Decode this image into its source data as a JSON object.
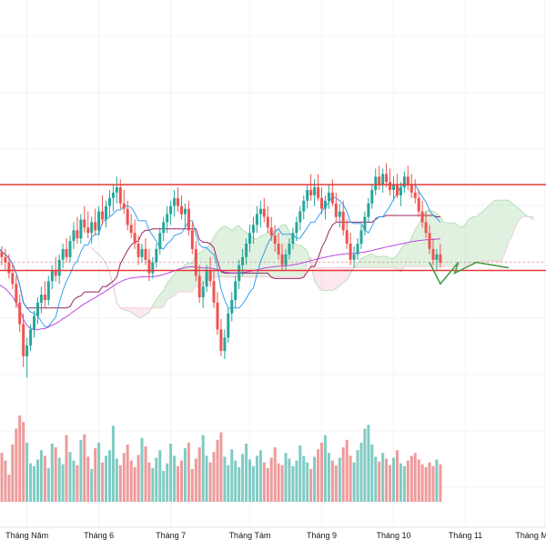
{
  "chart_data": {
    "type": "candlestick",
    "title": "",
    "xlabel": "",
    "ylabel": "",
    "x_tick_labels": [
      "Tháng Năm",
      "Tháng 6",
      "Tháng 7",
      "Tháng Tám",
      "Tháng 9",
      "Tháng 10",
      "Tháng 11",
      "Tháng Mười hai"
    ],
    "x_ticks_at_bar": [
      8,
      28,
      48,
      70,
      90,
      110,
      130,
      152
    ],
    "y_range": [
      0,
      100
    ],
    "grid": true,
    "colors": {
      "up": "#26a69a",
      "down": "#ef5350",
      "volume_up": "#80cbc4",
      "volume_down": "#ef9a9a",
      "tenkan": "#2196f3",
      "kijun": "#880e4f",
      "long_ma": "#b833e0",
      "cloud_bull": "#a5d6a7",
      "cloud_bear": "#f8bbd0",
      "range_box": "#e53935",
      "projection": "#43a047",
      "last_price_line": "#ef5350"
    },
    "range_box": {
      "upper": 82,
      "lower": 50,
      "from_bar": 0,
      "to_bar": 158
    },
    "projection_path": [
      [
        120,
        53
      ],
      [
        123,
        45
      ],
      [
        128,
        53
      ],
      [
        127,
        49
      ],
      [
        133,
        53
      ],
      [
        142,
        51
      ]
    ],
    "candles": [
      {
        "o": 59,
        "h": 62,
        "l": 55,
        "c": 57
      },
      {
        "o": 57,
        "h": 59,
        "l": 52,
        "c": 55
      },
      {
        "o": 55,
        "h": 58,
        "l": 50,
        "c": 53
      },
      {
        "o": 53,
        "h": 56,
        "l": 47,
        "c": 49
      },
      {
        "o": 49,
        "h": 52,
        "l": 43,
        "c": 45
      },
      {
        "o": 45,
        "h": 48,
        "l": 36,
        "c": 38
      },
      {
        "o": 38,
        "h": 41,
        "l": 27,
        "c": 30
      },
      {
        "o": 30,
        "h": 34,
        "l": 14,
        "c": 18
      },
      {
        "o": 18,
        "h": 25,
        "l": 10,
        "c": 22
      },
      {
        "o": 22,
        "h": 30,
        "l": 20,
        "c": 28
      },
      {
        "o": 28,
        "h": 35,
        "l": 25,
        "c": 33
      },
      {
        "o": 33,
        "h": 40,
        "l": 30,
        "c": 38
      },
      {
        "o": 38,
        "h": 44,
        "l": 34,
        "c": 41
      },
      {
        "o": 41,
        "h": 46,
        "l": 36,
        "c": 39
      },
      {
        "o": 39,
        "h": 48,
        "l": 37,
        "c": 46
      },
      {
        "o": 46,
        "h": 52,
        "l": 43,
        "c": 50
      },
      {
        "o": 50,
        "h": 55,
        "l": 46,
        "c": 48
      },
      {
        "o": 48,
        "h": 56,
        "l": 45,
        "c": 54
      },
      {
        "o": 54,
        "h": 60,
        "l": 51,
        "c": 58
      },
      {
        "o": 58,
        "h": 62,
        "l": 53,
        "c": 55
      },
      {
        "o": 55,
        "h": 63,
        "l": 53,
        "c": 61
      },
      {
        "o": 61,
        "h": 68,
        "l": 58,
        "c": 65
      },
      {
        "o": 65,
        "h": 70,
        "l": 60,
        "c": 62
      },
      {
        "o": 62,
        "h": 71,
        "l": 60,
        "c": 69
      },
      {
        "o": 69,
        "h": 74,
        "l": 64,
        "c": 66
      },
      {
        "o": 66,
        "h": 72,
        "l": 62,
        "c": 64
      },
      {
        "o": 64,
        "h": 70,
        "l": 60,
        "c": 68
      },
      {
        "o": 68,
        "h": 73,
        "l": 63,
        "c": 65
      },
      {
        "o": 65,
        "h": 74,
        "l": 63,
        "c": 72
      },
      {
        "o": 72,
        "h": 78,
        "l": 67,
        "c": 69
      },
      {
        "o": 69,
        "h": 76,
        "l": 66,
        "c": 74
      },
      {
        "o": 74,
        "h": 80,
        "l": 70,
        "c": 77
      },
      {
        "o": 77,
        "h": 82,
        "l": 72,
        "c": 79
      },
      {
        "o": 79,
        "h": 85,
        "l": 75,
        "c": 81
      },
      {
        "o": 81,
        "h": 84,
        "l": 73,
        "c": 75
      },
      {
        "o": 75,
        "h": 80,
        "l": 71,
        "c": 73
      },
      {
        "o": 73,
        "h": 76,
        "l": 65,
        "c": 67
      },
      {
        "o": 67,
        "h": 71,
        "l": 62,
        "c": 64
      },
      {
        "o": 64,
        "h": 69,
        "l": 58,
        "c": 60
      },
      {
        "o": 60,
        "h": 63,
        "l": 52,
        "c": 55
      },
      {
        "o": 55,
        "h": 60,
        "l": 53,
        "c": 58
      },
      {
        "o": 58,
        "h": 62,
        "l": 52,
        "c": 54
      },
      {
        "o": 54,
        "h": 58,
        "l": 46,
        "c": 49
      },
      {
        "o": 49,
        "h": 55,
        "l": 47,
        "c": 53
      },
      {
        "o": 53,
        "h": 60,
        "l": 51,
        "c": 58
      },
      {
        "o": 58,
        "h": 66,
        "l": 56,
        "c": 64
      },
      {
        "o": 64,
        "h": 70,
        "l": 61,
        "c": 68
      },
      {
        "o": 68,
        "h": 74,
        "l": 64,
        "c": 71
      },
      {
        "o": 71,
        "h": 76,
        "l": 67,
        "c": 74
      },
      {
        "o": 74,
        "h": 80,
        "l": 70,
        "c": 77
      },
      {
        "o": 77,
        "h": 81,
        "l": 72,
        "c": 74
      },
      {
        "o": 74,
        "h": 78,
        "l": 69,
        "c": 71
      },
      {
        "o": 71,
        "h": 75,
        "l": 66,
        "c": 73
      },
      {
        "o": 73,
        "h": 76,
        "l": 63,
        "c": 65
      },
      {
        "o": 65,
        "h": 68,
        "l": 56,
        "c": 58
      },
      {
        "o": 58,
        "h": 61,
        "l": 46,
        "c": 48
      },
      {
        "o": 48,
        "h": 52,
        "l": 38,
        "c": 40
      },
      {
        "o": 40,
        "h": 46,
        "l": 36,
        "c": 44
      },
      {
        "o": 44,
        "h": 52,
        "l": 42,
        "c": 50
      },
      {
        "o": 50,
        "h": 55,
        "l": 44,
        "c": 46
      },
      {
        "o": 46,
        "h": 50,
        "l": 36,
        "c": 38
      },
      {
        "o": 38,
        "h": 42,
        "l": 26,
        "c": 28
      },
      {
        "o": 28,
        "h": 32,
        "l": 18,
        "c": 20
      },
      {
        "o": 20,
        "h": 28,
        "l": 17,
        "c": 25
      },
      {
        "o": 25,
        "h": 36,
        "l": 23,
        "c": 34
      },
      {
        "o": 34,
        "h": 42,
        "l": 31,
        "c": 39
      },
      {
        "o": 39,
        "h": 48,
        "l": 36,
        "c": 46
      },
      {
        "o": 46,
        "h": 54,
        "l": 43,
        "c": 52
      },
      {
        "o": 52,
        "h": 58,
        "l": 48,
        "c": 55
      },
      {
        "o": 55,
        "h": 62,
        "l": 52,
        "c": 60
      },
      {
        "o": 60,
        "h": 67,
        "l": 57,
        "c": 64
      },
      {
        "o": 64,
        "h": 70,
        "l": 60,
        "c": 67
      },
      {
        "o": 67,
        "h": 74,
        "l": 64,
        "c": 71
      },
      {
        "o": 71,
        "h": 76,
        "l": 66,
        "c": 73
      },
      {
        "o": 73,
        "h": 77,
        "l": 68,
        "c": 70
      },
      {
        "o": 70,
        "h": 74,
        "l": 64,
        "c": 66
      },
      {
        "o": 66,
        "h": 70,
        "l": 61,
        "c": 63
      },
      {
        "o": 63,
        "h": 67,
        "l": 57,
        "c": 60
      },
      {
        "o": 60,
        "h": 64,
        "l": 54,
        "c": 56
      },
      {
        "o": 56,
        "h": 60,
        "l": 50,
        "c": 52
      },
      {
        "o": 52,
        "h": 58,
        "l": 50,
        "c": 56
      },
      {
        "o": 56,
        "h": 62,
        "l": 54,
        "c": 60
      },
      {
        "o": 60,
        "h": 66,
        "l": 58,
        "c": 64
      },
      {
        "o": 64,
        "h": 70,
        "l": 61,
        "c": 68
      },
      {
        "o": 68,
        "h": 74,
        "l": 65,
        "c": 72
      },
      {
        "o": 72,
        "h": 78,
        "l": 69,
        "c": 76
      },
      {
        "o": 76,
        "h": 82,
        "l": 73,
        "c": 80
      },
      {
        "o": 80,
        "h": 86,
        "l": 76,
        "c": 78
      },
      {
        "o": 78,
        "h": 84,
        "l": 74,
        "c": 81
      },
      {
        "o": 81,
        "h": 86,
        "l": 76,
        "c": 77
      },
      {
        "o": 77,
        "h": 81,
        "l": 71,
        "c": 73
      },
      {
        "o": 73,
        "h": 78,
        "l": 69,
        "c": 76
      },
      {
        "o": 76,
        "h": 82,
        "l": 73,
        "c": 79
      },
      {
        "o": 79,
        "h": 84,
        "l": 74,
        "c": 75
      },
      {
        "o": 75,
        "h": 79,
        "l": 68,
        "c": 70
      },
      {
        "o": 70,
        "h": 75,
        "l": 66,
        "c": 72
      },
      {
        "o": 72,
        "h": 76,
        "l": 63,
        "c": 65
      },
      {
        "o": 65,
        "h": 69,
        "l": 58,
        "c": 60
      },
      {
        "o": 60,
        "h": 64,
        "l": 52,
        "c": 54
      },
      {
        "o": 54,
        "h": 59,
        "l": 51,
        "c": 56
      },
      {
        "o": 56,
        "h": 62,
        "l": 54,
        "c": 60
      },
      {
        "o": 60,
        "h": 67,
        "l": 58,
        "c": 65
      },
      {
        "o": 65,
        "h": 72,
        "l": 63,
        "c": 70
      },
      {
        "o": 70,
        "h": 77,
        "l": 68,
        "c": 75
      },
      {
        "o": 75,
        "h": 82,
        "l": 73,
        "c": 80
      },
      {
        "o": 80,
        "h": 88,
        "l": 78,
        "c": 85
      },
      {
        "o": 85,
        "h": 89,
        "l": 80,
        "c": 82
      },
      {
        "o": 82,
        "h": 88,
        "l": 79,
        "c": 86
      },
      {
        "o": 86,
        "h": 90,
        "l": 81,
        "c": 83
      },
      {
        "o": 83,
        "h": 88,
        "l": 78,
        "c": 80
      },
      {
        "o": 80,
        "h": 85,
        "l": 76,
        "c": 82
      },
      {
        "o": 82,
        "h": 86,
        "l": 77,
        "c": 78
      },
      {
        "o": 78,
        "h": 83,
        "l": 74,
        "c": 81
      },
      {
        "o": 81,
        "h": 87,
        "l": 79,
        "c": 85
      },
      {
        "o": 85,
        "h": 89,
        "l": 80,
        "c": 82
      },
      {
        "o": 82,
        "h": 86,
        "l": 77,
        "c": 79
      },
      {
        "o": 79,
        "h": 84,
        "l": 75,
        "c": 77
      },
      {
        "o": 77,
        "h": 80,
        "l": 70,
        "c": 72
      },
      {
        "o": 72,
        "h": 76,
        "l": 66,
        "c": 68
      },
      {
        "o": 68,
        "h": 72,
        "l": 62,
        "c": 64
      },
      {
        "o": 64,
        "h": 67,
        "l": 56,
        "c": 58
      },
      {
        "o": 58,
        "h": 62,
        "l": 52,
        "c": 54
      },
      {
        "o": 54,
        "h": 58,
        "l": 50,
        "c": 56
      },
      {
        "o": 56,
        "h": 60,
        "l": 51,
        "c": 53
      }
    ],
    "volumes": [
      34,
      52,
      44,
      29,
      61,
      78,
      92,
      85,
      63,
      41,
      38,
      45,
      55,
      49,
      36,
      62,
      58,
      47,
      40,
      71,
      53,
      44,
      39,
      66,
      72,
      48,
      35,
      57,
      63,
      42,
      49,
      55,
      81,
      46,
      39,
      52,
      61,
      44,
      37,
      50,
      68,
      59,
      42,
      36,
      47,
      55,
      33,
      41,
      62,
      49,
      38,
      44,
      57,
      63,
      35,
      46,
      58,
      71,
      49,
      42,
      53,
      66,
      74,
      48,
      39,
      56,
      44,
      37,
      51,
      62,
      45,
      38,
      49,
      55,
      42,
      36,
      47,
      58,
      41,
      39,
      52,
      46,
      38,
      44,
      60,
      49,
      42,
      35,
      48,
      56,
      63,
      71,
      52,
      44,
      39,
      47,
      58,
      66,
      49,
      42,
      55,
      63,
      78,
      82,
      61,
      48,
      43,
      52,
      46,
      39,
      47,
      55,
      41,
      38,
      44,
      49,
      52,
      45,
      40,
      37,
      42,
      38,
      45,
      40
    ]
  }
}
